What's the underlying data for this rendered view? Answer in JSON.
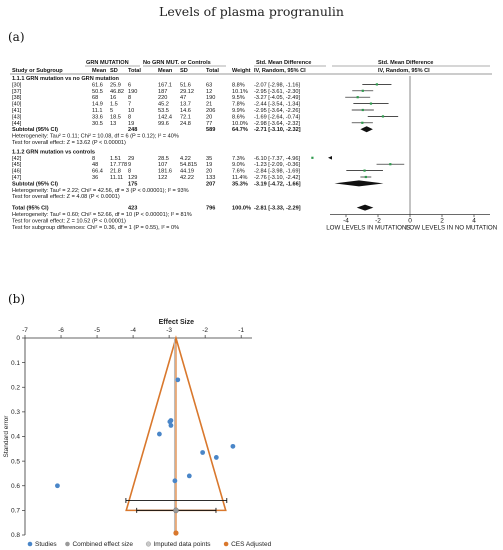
{
  "figure": {
    "title": "Levels of plasma progranulin",
    "panel_a_label": "(a)",
    "panel_b_label": "(b)"
  },
  "chart_data": [
    {
      "type": "table",
      "panel": "a",
      "group_headers": {
        "grn": "GRN MUTATION",
        "ctrl": "No GRN MUT. or Controls",
        "smd": "Std. Mean Difference",
        "smd_plot": "Std. Mean Difference"
      },
      "columns": {
        "study": "Study or Subgroup",
        "mean": "Mean",
        "sd": "SD",
        "total": "Total",
        "weight": "Weight",
        "ci": "IV, Random, 95% CI",
        "ci_plot": "IV, Random, 95% CI"
      },
      "subgroups": [
        {
          "title": "1.1.1 GRN mutation vs no GRN mutation",
          "studies": [
            {
              "study": "[30]",
              "m1": "61.6",
              "sd1": "25.9",
              "n1": "6",
              "m2": "167.1",
              "sd2": "51.6",
              "n2": "63",
              "weight": "8.8%",
              "ci_text": "-2.07 [-2.98, -1.16]",
              "smd": -2.07,
              "lo": -2.98,
              "hi": -1.16
            },
            {
              "study": "[37]",
              "m1": "50.5",
              "sd1": "46.82",
              "n1": "190",
              "m2": "187",
              "sd2": "29.12",
              "n2": "12",
              "weight": "10.1%",
              "ci_text": "-2.95 [-3.61, -2.30]",
              "smd": -2.95,
              "lo": -3.61,
              "hi": -2.3
            },
            {
              "study": "[38]",
              "m1": "68",
              "sd1": "16",
              "n1": "8",
              "m2": "220",
              "sd2": "47",
              "n2": "190",
              "weight": "9.5%",
              "ci_text": "-3.27 [-4.05, -2.49]",
              "smd": -3.27,
              "lo": -4.05,
              "hi": -2.49
            },
            {
              "study": "[40]",
              "m1": "14.9",
              "sd1": "1.5",
              "n1": "7",
              "m2": "45.2",
              "sd2": "13.7",
              "n2": "21",
              "weight": "7.8%",
              "ci_text": "-2.44 [-3.54, -1.34]",
              "smd": -2.44,
              "lo": -3.54,
              "hi": -1.34
            },
            {
              "study": "[41]",
              "m1": "11.1",
              "sd1": "5",
              "n1": "10",
              "m2": "53.5",
              "sd2": "14.6",
              "n2": "206",
              "weight": "9.9%",
              "ci_text": "-2.95 [-3.64, -2.26]",
              "smd": -2.95,
              "lo": -3.64,
              "hi": -2.26
            },
            {
              "study": "[43]",
              "m1": "33.6",
              "sd1": "18.5",
              "n1": "8",
              "m2": "142.4",
              "sd2": "72.1",
              "n2": "20",
              "weight": "8.6%",
              "ci_text": "-1.69 [-2.64, -0.74]",
              "smd": -1.69,
              "lo": -2.64,
              "hi": -0.74
            },
            {
              "study": "[44]",
              "m1": "30.5",
              "sd1": "13",
              "n1": "19",
              "m2": "99.6",
              "sd2": "24.8",
              "n2": "77",
              "weight": "10.0%",
              "ci_text": "-2.98 [-3.64, -2.32]",
              "smd": -2.98,
              "lo": -3.64,
              "hi": -2.32
            }
          ],
          "subtotal": {
            "label": "Subtotal (95% CI)",
            "n1": "248",
            "n2": "589",
            "weight": "64.7%",
            "ci_text": "-2.71 [-3.10, -2.32]",
            "smd": -2.71,
            "lo": -3.1,
            "hi": -2.32
          },
          "heterogeneity": "Heterogeneity: Tau² = 0.11; Chi² = 10.08, df = 6 (P = 0.12); I² = 40%",
          "overall_test": "Test for overall effect: Z = 13.62 (P < 0.00001)"
        },
        {
          "title": "1.1.2 GRN mutation vs controls",
          "studies": [
            {
              "study": "[42]",
              "m1": "8",
              "sd1": "1.51",
              "n1": "29",
              "m2": "28.5",
              "sd2": "4.22",
              "n2": "35",
              "weight": "7.3%",
              "ci_text": "-6.10 [-7.37, -4.96]",
              "smd": -6.1,
              "lo": -7.37,
              "hi": -4.96
            },
            {
              "study": "[45]",
              "m1": "48",
              "sd1": "17.778",
              "n1": "9",
              "m2": "107",
              "sd2": "54.815",
              "n2": "19",
              "weight": "9.0%",
              "ci_text": "-1.23 [-2.09, -0.36]",
              "smd": -1.23,
              "lo": -2.09,
              "hi": -0.36
            },
            {
              "study": "[46]",
              "m1": "66.4",
              "sd1": "21.8",
              "n1": "8",
              "m2": "181.6",
              "sd2": "44.19",
              "n2": "20",
              "weight": "7.6%",
              "ci_text": "-2.84 [-3.98, -1.69]",
              "smd": -2.84,
              "lo": -3.98,
              "hi": -1.69
            },
            {
              "study": "[47]",
              "m1": "36",
              "sd1": "11.11",
              "n1": "129",
              "m2": "122",
              "sd2": "42.22",
              "n2": "133",
              "weight": "11.4%",
              "ci_text": "-2.76 [-3.10, -2.42]",
              "smd": -2.76,
              "lo": -3.1,
              "hi": -2.42
            }
          ],
          "subtotal": {
            "label": "Subtotal (95% CI)",
            "n1": "175",
            "n2": "207",
            "weight": "35.3%",
            "ci_text": "-3.19 [-4.72, -1.66]",
            "smd": -3.19,
            "lo": -4.72,
            "hi": -1.66
          },
          "heterogeneity": "Heterogeneity: Tau² = 2.22; Chi² = 42.56, df = 3 (P < 0.00001); I² = 93%",
          "overall_test": "Test for overall effect: Z = 4.08 (P < 0.0001)"
        }
      ],
      "total": {
        "label": "Total (95% CI)",
        "n1": "423",
        "n2": "796",
        "weight": "100.0%",
        "ci_text": "-2.81 [-3.33, -2.29]",
        "smd": -2.81,
        "lo": -3.33,
        "hi": -2.29
      },
      "total_heterogeneity": "Heterogeneity: Tau² = 0.60; Chi² = 52.66, df = 10 (P < 0.00001); I² = 81%",
      "total_overall_test": "Test for overall effect: Z = 10.52 (P < 0.00001)",
      "subgroup_test": "Test for subgroup differences: Chi² = 0.36, df = 1 (P = 0.55), I² = 0%",
      "x_ticks": [
        -4,
        -2,
        0,
        2,
        4
      ],
      "x_tick_labels": [
        "-4",
        "-2",
        "0",
        "2",
        "4"
      ],
      "xlim": [
        -5,
        5
      ],
      "left_label": "LOW LEVELS IN MUTATIONS",
      "right_label": "LOW LEVELS IN NO MUTATION"
    },
    {
      "type": "scatter",
      "panel": "b",
      "xlabel": "Effect Size",
      "ylabel": "Standard error",
      "x_ticks": [
        -7,
        -6,
        -5,
        -4,
        -3,
        -2,
        -1
      ],
      "x_tick_labels": [
        "-7",
        "-6",
        "-5",
        "-4",
        "-3",
        "-2",
        "-1"
      ],
      "y_ticks": [
        0,
        0.1,
        0.2,
        0.3,
        0.4,
        0.5,
        0.6,
        0.7,
        0.8
      ],
      "y_tick_labels": [
        "0",
        "0.1",
        "0.2",
        "0.3",
        "0.4",
        "0.5",
        "0.6",
        "0.7",
        "0.8"
      ],
      "xlim": [
        -7,
        -0.7
      ],
      "ylim": [
        0,
        0.8
      ],
      "y_reversed": true,
      "funnel_center": -2.81,
      "funnel_apex_se": 0,
      "funnel_base_se": 0.7,
      "funnel_base_lo": -4.19,
      "funnel_base_hi": -1.43,
      "studies": [
        {
          "x": -2.76,
          "y": 0.17
        },
        {
          "x": -2.95,
          "y": 0.335
        },
        {
          "x": -2.98,
          "y": 0.34
        },
        {
          "x": -2.95,
          "y": 0.355
        },
        {
          "x": -3.27,
          "y": 0.39
        },
        {
          "x": -2.07,
          "y": 0.465
        },
        {
          "x": -2.84,
          "y": 0.58
        },
        {
          "x": -2.44,
          "y": 0.56
        },
        {
          "x": -1.69,
          "y": 0.485
        },
        {
          "x": -1.23,
          "y": 0.44
        },
        {
          "x": -6.1,
          "y": 0.6
        }
      ],
      "combined_effect": {
        "x": -2.81,
        "y": 0.7
      },
      "imputed_effect": {
        "x": -2.81,
        "y": 0.7
      },
      "adjusted_effect": {
        "x": -2.81,
        "y": 0.8
      },
      "ci_bars": [
        {
          "y": 0.66,
          "lo": -4.2,
          "hi": -1.4
        },
        {
          "y": 0.7,
          "lo": -3.9,
          "hi": -1.7
        }
      ],
      "legend": [
        {
          "label": "Studies",
          "color": "#4a86c8"
        },
        {
          "label": "Combined effect size",
          "color": "#9a9a9a"
        },
        {
          "label": "Imputed data points",
          "color": "#c9c9c9"
        },
        {
          "label": "CES Adjusted",
          "color": "#d9782d"
        }
      ],
      "colors": {
        "study": "#4a86c8",
        "funnel": "#d9782d",
        "center": "#bbbbbb",
        "diamond": "#111111",
        "green": "#2f9a4e"
      }
    }
  ]
}
